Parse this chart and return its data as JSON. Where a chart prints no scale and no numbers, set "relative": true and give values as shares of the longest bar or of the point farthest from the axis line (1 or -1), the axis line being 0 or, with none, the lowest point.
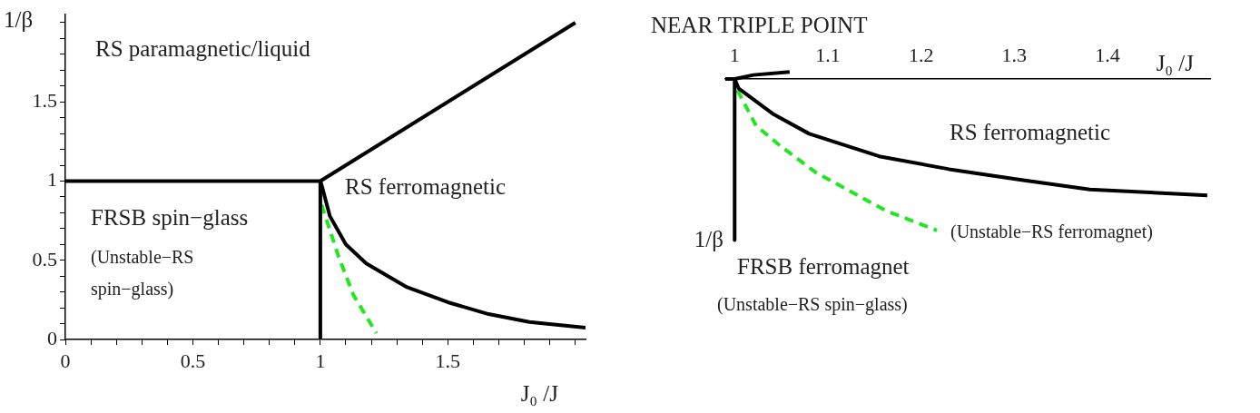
{
  "chart_data": [
    {
      "type": "line",
      "xlabel": "J₀ /J",
      "ylabel": "1/β",
      "xlim": [
        0,
        2.04
      ],
      "ylim": [
        0,
        2.05
      ],
      "xticks": [
        0,
        {
          "value": 0.1,
          "label": null
        },
        {
          "value": 0.2,
          "label": null
        },
        {
          "value": 0.3,
          "label": null
        },
        {
          "value": 0.4,
          "label": null
        },
        0.5,
        {
          "value": 0.6,
          "label": null
        },
        {
          "value": 0.7,
          "label": null
        },
        {
          "value": 0.8,
          "label": null
        },
        {
          "value": 0.9,
          "label": null
        },
        1,
        {
          "value": 1.1,
          "label": null
        },
        {
          "value": 1.2,
          "label": null
        },
        {
          "value": 1.3,
          "label": null
        },
        {
          "value": 1.4,
          "label": null
        },
        1.5,
        {
          "value": 1.6,
          "label": null
        },
        {
          "value": 1.7,
          "label": null
        },
        {
          "value": 1.8,
          "label": null
        },
        {
          "value": 1.9,
          "label": null
        },
        {
          "value": 2,
          "label": null
        }
      ],
      "yticks": [
        0,
        {
          "value": 0.1,
          "label": null
        },
        {
          "value": 0.2,
          "label": null
        },
        {
          "value": 0.3,
          "label": null
        },
        {
          "value": 0.4,
          "label": null
        },
        0.5,
        {
          "value": 0.6,
          "label": null
        },
        {
          "value": 0.7,
          "label": null
        },
        {
          "value": 0.8,
          "label": null
        },
        {
          "value": 0.9,
          "label": null
        },
        1,
        {
          "value": 1.1,
          "label": null
        },
        {
          "value": 1.2,
          "label": null
        },
        {
          "value": 1.3,
          "label": null
        },
        {
          "value": 1.4,
          "label": null
        },
        1.5,
        {
          "value": 1.6,
          "label": null
        },
        {
          "value": 1.7,
          "label": null
        },
        {
          "value": 1.8,
          "label": null
        },
        {
          "value": 1.9,
          "label": null
        },
        {
          "value": 2,
          "label": null
        }
      ],
      "grid": false,
      "legend": false,
      "marker": "none",
      "series": [
        {
          "color": "#000000",
          "x": [
            0,
            1
          ],
          "values": [
            1,
            1
          ]
        },
        {
          "color": "#000000",
          "x": [
            1,
            1
          ],
          "values": [
            0,
            1
          ]
        },
        {
          "color": "#000000",
          "x": [
            1,
            2
          ],
          "values": [
            1,
            2
          ]
        },
        {
          "color": "#000000",
          "x": [
            1,
            1.005,
            1.037,
            1.1,
            1.18,
            1.34,
            1.5,
            1.66,
            1.82,
            2.04
          ],
          "values": [
            1,
            0.975,
            0.78,
            0.6,
            0.48,
            0.33,
            0.235,
            0.16,
            0.11,
            0.074
          ]
        },
        {
          "color": "#22e622",
          "line_style": "dashed",
          "x": [
            1.005,
            1.07,
            1.13,
            1.22
          ],
          "values": [
            0.85,
            0.53,
            0.28,
            0.04
          ]
        }
      ],
      "annotations": [
        "RS paramagnetic/liquid",
        "RS ferromagnetic",
        "FRSB spin−glass",
        "(Unstable−RS spin−glass)"
      ]
    },
    {
      "type": "line",
      "title": "NEAR TRIPLE POINT",
      "xlabel": "J₀ /J",
      "ylabel": "1/β",
      "relative": true,
      "tick_labels": "x",
      "xlim": [
        0.99,
        1.51
      ],
      "xticks": [
        1,
        1.1,
        1.2,
        1.3,
        1.4
      ],
      "grid": false,
      "legend": false,
      "marker": "none",
      "series": [
        {
          "color": "#000000",
          "x": [
            0.99,
            1,
            1.02,
            1.059
          ],
          "values": [
            0,
            0,
            0.025,
            0.044
          ]
        },
        {
          "color": "#000000",
          "x": [
            1,
            1
          ],
          "values": [
            0,
            -1
          ]
        },
        {
          "color": "#000000",
          "x": [
            1,
            1.0045,
            1.042,
            1.08,
            1.155,
            1.23,
            1.306,
            1.381,
            1.507
          ],
          "values": [
            0,
            -0.06,
            -0.22,
            -0.34,
            -0.48,
            -0.56,
            -0.625,
            -0.686,
            -0.723
          ]
        },
        {
          "color": "#22e622",
          "line_style": "dashed",
          "x": [
            1.003,
            1.023,
            1.05,
            1.087,
            1.163,
            1.217
          ],
          "values": [
            -0.07,
            -0.29,
            -0.42,
            -0.58,
            -0.82,
            -0.94
          ]
        }
      ],
      "annotations": [
        "RS ferromagnetic",
        "FRSB ferromagnet",
        "(Unstable−RS ferromagnet)",
        "(Unstable−RS spin−glass)"
      ]
    }
  ]
}
